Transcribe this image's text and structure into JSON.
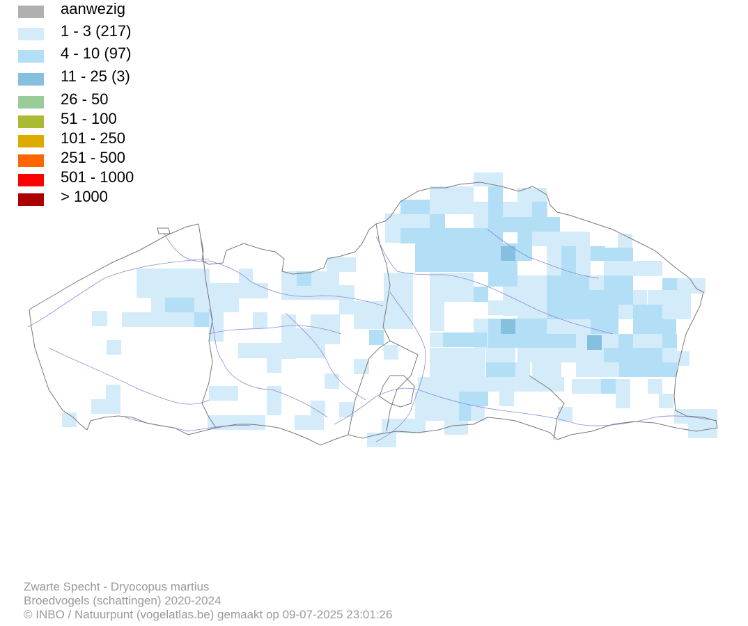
{
  "legend": {
    "items": [
      {
        "label": "aanwezig",
        "color": "#b0b0b0"
      },
      {
        "label": "1 - 3 (217)",
        "color": "#d4ebfa"
      },
      {
        "label": "4 - 10 (97)",
        "color": "#b2dff6"
      },
      {
        "label": "11 - 25 (3)",
        "color": "#86c0de"
      },
      {
        "label": "26 - 50",
        "color": "#99cc99"
      },
      {
        "label": "51 - 100",
        "color": "#aabb33"
      },
      {
        "label": "101 - 250",
        "color": "#ddaa00"
      },
      {
        "label": "251 - 500",
        "color": "#ff6600"
      },
      {
        "label": "501 - 1000",
        "color": "#ff0000"
      },
      {
        "label": "> 1000",
        "color": "#aa0000"
      }
    ]
  },
  "footer": {
    "species": "Zwarte Specht - Dryocopus martius",
    "subtitle": "Broedvogels (schattingen) 2020-2024",
    "credit": "© INBO / Natuurpunt (vogelatlas.be) gemaakt op 09-07-2025 23:01:26"
  },
  "map": {
    "border_color": "#777777",
    "river_color": "#8888dd"
  }
}
